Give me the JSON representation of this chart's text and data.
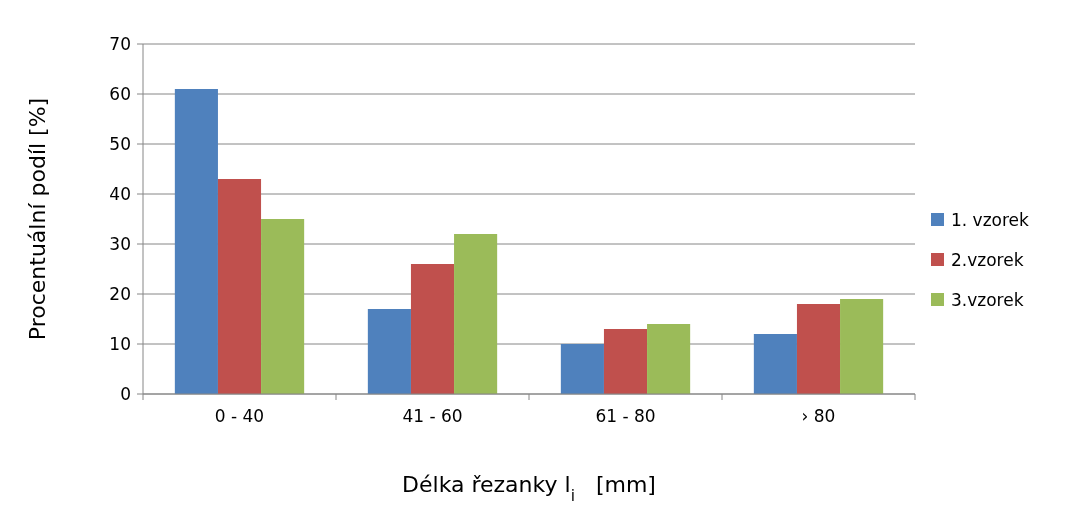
{
  "chart_data": {
    "type": "bar",
    "xlabel": "Délka řezanky l$_{i}$   [mm]",
    "ylabel": "Procentuální podíl [%]",
    "categories": [
      "0 - 40",
      "41 - 60",
      "61 - 80",
      "› 80"
    ],
    "series": [
      {
        "name": "1. vzorek",
        "color": "#4f81bd",
        "values": [
          61,
          17,
          10,
          12
        ]
      },
      {
        "name": "2.vzorek",
        "color": "#c0504d",
        "values": [
          43,
          26,
          13,
          18
        ]
      },
      {
        "name": "3.vzorek",
        "color": "#9bbb59",
        "values": [
          35,
          32,
          14,
          19
        ]
      }
    ],
    "ylim": [
      0,
      70
    ],
    "yticks": [
      0,
      10,
      20,
      30,
      40,
      50,
      60,
      70
    ],
    "grid": "y",
    "legend": "right"
  }
}
